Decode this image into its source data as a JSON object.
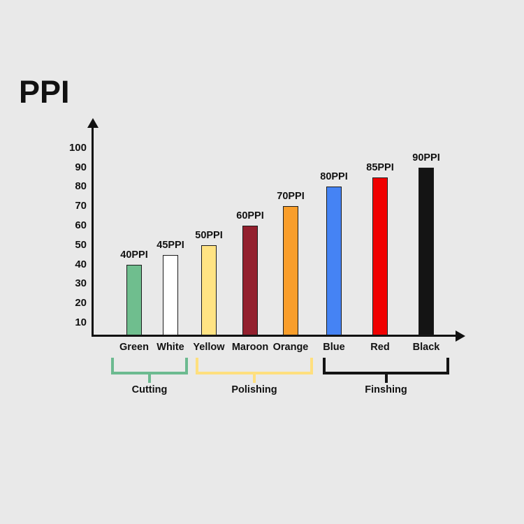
{
  "chart_data": {
    "type": "bar",
    "title": "PPI",
    "categories": [
      "Green",
      "White",
      "Yellow",
      "Maroon",
      "Orange",
      "Blue",
      "Red",
      "Black"
    ],
    "values": [
      40,
      45,
      50,
      60,
      70,
      80,
      85,
      90
    ],
    "bar_labels": [
      "40PPI",
      "45PPI",
      "50PPI",
      "60PPI",
      "70PPI",
      "80PPI",
      "85PPI",
      "90PPI"
    ],
    "bar_colors": [
      "#6FBE8E",
      "#FFFFFF",
      "#FFE383",
      "#93202E",
      "#F99E2B",
      "#4583F4",
      "#F00000",
      "#141414"
    ],
    "y_ticks": [
      100,
      90,
      80,
      70,
      60,
      50,
      40,
      30,
      20,
      10
    ],
    "ylim": [
      0,
      100
    ],
    "xlabel": "",
    "ylabel": "",
    "grid": false,
    "legend": false,
    "groups": [
      {
        "label": "Cutting",
        "categories": [
          "Green",
          "White"
        ],
        "color": "#6CBA90"
      },
      {
        "label": "Polishing",
        "categories": [
          "Yellow",
          "Maroon",
          "Orange"
        ],
        "color": "#FFDF7E"
      },
      {
        "label": "Finshing",
        "categories": [
          "Blue",
          "Red",
          "Black"
        ],
        "color": "#141414"
      }
    ],
    "colors": {
      "background": "#E9E9E9",
      "axis": "#111111",
      "text": "#111111",
      "bar_outline": "#1B1B1B"
    }
  }
}
